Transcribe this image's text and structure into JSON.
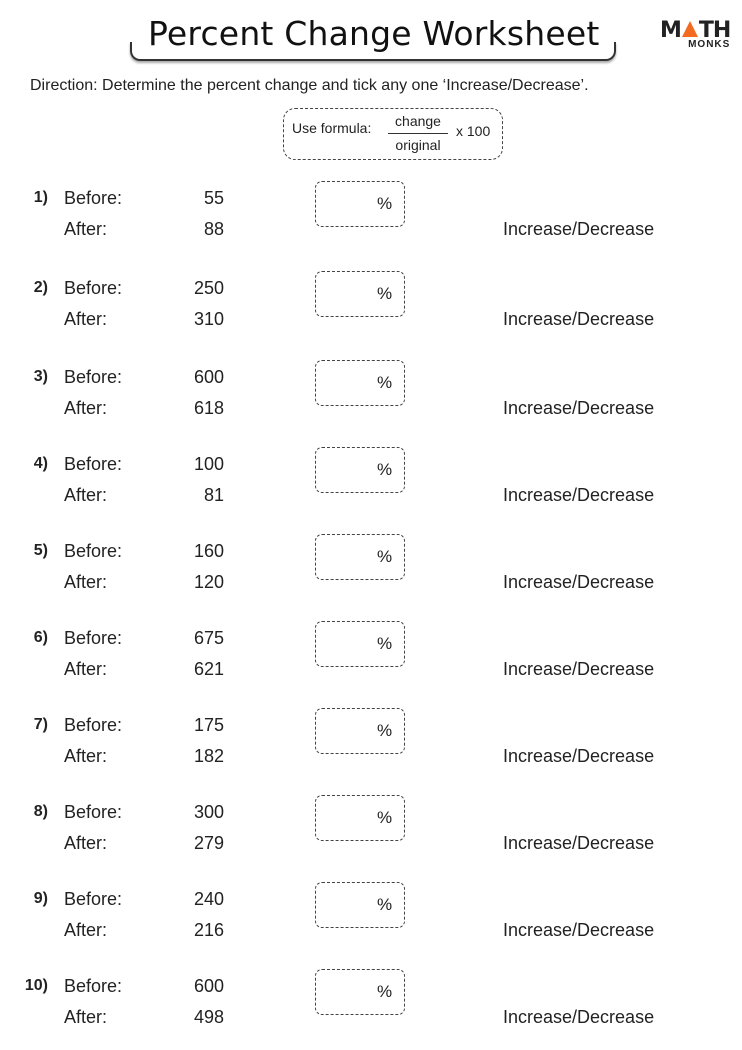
{
  "header": {
    "title": "Percent Change Worksheet",
    "logo_top": "MATH",
    "logo_bottom": "MONKS",
    "logo_accent": "#f26b21"
  },
  "direction": "Direction:  Determine the percent change and tick any one ‘Increase/Decrease’.",
  "formula": {
    "label": "Use formula:",
    "numerator": "change",
    "denominator": "original",
    "multiplier": "x 100"
  },
  "labels": {
    "before": "Before:",
    "after": "After:",
    "percent": "%",
    "choice": "Increase/Decrease"
  },
  "problems": [
    {
      "n": "1)",
      "before": "55",
      "after": "88"
    },
    {
      "n": "2)",
      "before": "250",
      "after": "310"
    },
    {
      "n": "3)",
      "before": "600",
      "after": "618"
    },
    {
      "n": "4)",
      "before": "100",
      "after": "81"
    },
    {
      "n": "5)",
      "before": "160",
      "after": "120"
    },
    {
      "n": "6)",
      "before": "675",
      "after": "621"
    },
    {
      "n": "7)",
      "before": "175",
      "after": "182"
    },
    {
      "n": "8)",
      "before": "300",
      "after": "279"
    },
    {
      "n": "9)",
      "before": "240",
      "after": "216"
    },
    {
      "n": "10)",
      "before": "600",
      "after": "498"
    }
  ]
}
